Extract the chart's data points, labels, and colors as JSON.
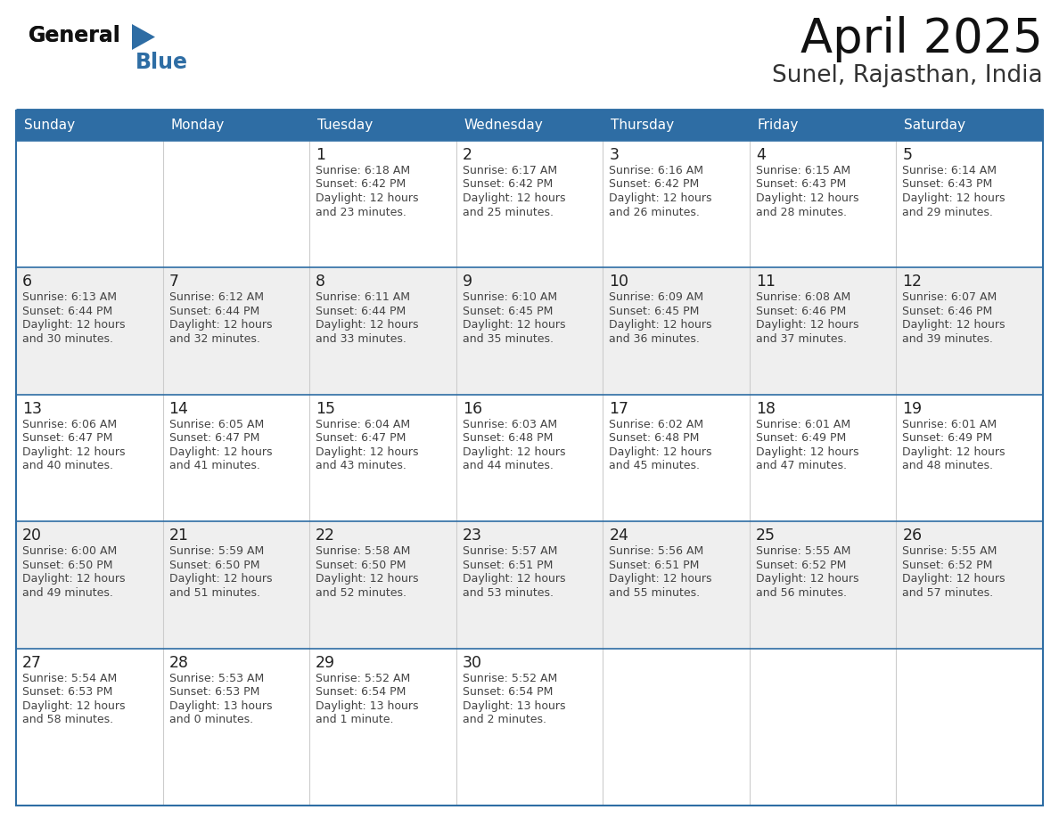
{
  "title": "April 2025",
  "subtitle": "Sunel, Rajasthan, India",
  "header_bg_color": "#2E6DA4",
  "header_text_color": "#FFFFFF",
  "cell_bg_light": "#EFEFEF",
  "cell_bg_white": "#FFFFFF",
  "border_color": "#2E6DA4",
  "text_color": "#333333",
  "day_number_color": "#222222",
  "logo_general_color": "#1a1a1a",
  "logo_blue_color": "#2E6DA4",
  "logo_triangle_color": "#2E6DA4",
  "day_headers": [
    "Sunday",
    "Monday",
    "Tuesday",
    "Wednesday",
    "Thursday",
    "Friday",
    "Saturday"
  ],
  "weeks": [
    [
      {
        "day": "",
        "sunrise": "",
        "sunset": "",
        "daylight": ""
      },
      {
        "day": "",
        "sunrise": "",
        "sunset": "",
        "daylight": ""
      },
      {
        "day": "1",
        "sunrise": "6:18 AM",
        "sunset": "6:42 PM",
        "daylight": "12 hours\nand 23 minutes."
      },
      {
        "day": "2",
        "sunrise": "6:17 AM",
        "sunset": "6:42 PM",
        "daylight": "12 hours\nand 25 minutes."
      },
      {
        "day": "3",
        "sunrise": "6:16 AM",
        "sunset": "6:42 PM",
        "daylight": "12 hours\nand 26 minutes."
      },
      {
        "day": "4",
        "sunrise": "6:15 AM",
        "sunset": "6:43 PM",
        "daylight": "12 hours\nand 28 minutes."
      },
      {
        "day": "5",
        "sunrise": "6:14 AM",
        "sunset": "6:43 PM",
        "daylight": "12 hours\nand 29 minutes."
      }
    ],
    [
      {
        "day": "6",
        "sunrise": "6:13 AM",
        "sunset": "6:44 PM",
        "daylight": "12 hours\nand 30 minutes."
      },
      {
        "day": "7",
        "sunrise": "6:12 AM",
        "sunset": "6:44 PM",
        "daylight": "12 hours\nand 32 minutes."
      },
      {
        "day": "8",
        "sunrise": "6:11 AM",
        "sunset": "6:44 PM",
        "daylight": "12 hours\nand 33 minutes."
      },
      {
        "day": "9",
        "sunrise": "6:10 AM",
        "sunset": "6:45 PM",
        "daylight": "12 hours\nand 35 minutes."
      },
      {
        "day": "10",
        "sunrise": "6:09 AM",
        "sunset": "6:45 PM",
        "daylight": "12 hours\nand 36 minutes."
      },
      {
        "day": "11",
        "sunrise": "6:08 AM",
        "sunset": "6:46 PM",
        "daylight": "12 hours\nand 37 minutes."
      },
      {
        "day": "12",
        "sunrise": "6:07 AM",
        "sunset": "6:46 PM",
        "daylight": "12 hours\nand 39 minutes."
      }
    ],
    [
      {
        "day": "13",
        "sunrise": "6:06 AM",
        "sunset": "6:47 PM",
        "daylight": "12 hours\nand 40 minutes."
      },
      {
        "day": "14",
        "sunrise": "6:05 AM",
        "sunset": "6:47 PM",
        "daylight": "12 hours\nand 41 minutes."
      },
      {
        "day": "15",
        "sunrise": "6:04 AM",
        "sunset": "6:47 PM",
        "daylight": "12 hours\nand 43 minutes."
      },
      {
        "day": "16",
        "sunrise": "6:03 AM",
        "sunset": "6:48 PM",
        "daylight": "12 hours\nand 44 minutes."
      },
      {
        "day": "17",
        "sunrise": "6:02 AM",
        "sunset": "6:48 PM",
        "daylight": "12 hours\nand 45 minutes."
      },
      {
        "day": "18",
        "sunrise": "6:01 AM",
        "sunset": "6:49 PM",
        "daylight": "12 hours\nand 47 minutes."
      },
      {
        "day": "19",
        "sunrise": "6:01 AM",
        "sunset": "6:49 PM",
        "daylight": "12 hours\nand 48 minutes."
      }
    ],
    [
      {
        "day": "20",
        "sunrise": "6:00 AM",
        "sunset": "6:50 PM",
        "daylight": "12 hours\nand 49 minutes."
      },
      {
        "day": "21",
        "sunrise": "5:59 AM",
        "sunset": "6:50 PM",
        "daylight": "12 hours\nand 51 minutes."
      },
      {
        "day": "22",
        "sunrise": "5:58 AM",
        "sunset": "6:50 PM",
        "daylight": "12 hours\nand 52 minutes."
      },
      {
        "day": "23",
        "sunrise": "5:57 AM",
        "sunset": "6:51 PM",
        "daylight": "12 hours\nand 53 minutes."
      },
      {
        "day": "24",
        "sunrise": "5:56 AM",
        "sunset": "6:51 PM",
        "daylight": "12 hours\nand 55 minutes."
      },
      {
        "day": "25",
        "sunrise": "5:55 AM",
        "sunset": "6:52 PM",
        "daylight": "12 hours\nand 56 minutes."
      },
      {
        "day": "26",
        "sunrise": "5:55 AM",
        "sunset": "6:52 PM",
        "daylight": "12 hours\nand 57 minutes."
      }
    ],
    [
      {
        "day": "27",
        "sunrise": "5:54 AM",
        "sunset": "6:53 PM",
        "daylight": "12 hours\nand 58 minutes."
      },
      {
        "day": "28",
        "sunrise": "5:53 AM",
        "sunset": "6:53 PM",
        "daylight": "13 hours\nand 0 minutes."
      },
      {
        "day": "29",
        "sunrise": "5:52 AM",
        "sunset": "6:54 PM",
        "daylight": "13 hours\nand 1 minute."
      },
      {
        "day": "30",
        "sunrise": "5:52 AM",
        "sunset": "6:54 PM",
        "daylight": "13 hours\nand 2 minutes."
      },
      {
        "day": "",
        "sunrise": "",
        "sunset": "",
        "daylight": ""
      },
      {
        "day": "",
        "sunrise": "",
        "sunset": "",
        "daylight": ""
      },
      {
        "day": "",
        "sunrise": "",
        "sunset": "",
        "daylight": ""
      }
    ]
  ]
}
